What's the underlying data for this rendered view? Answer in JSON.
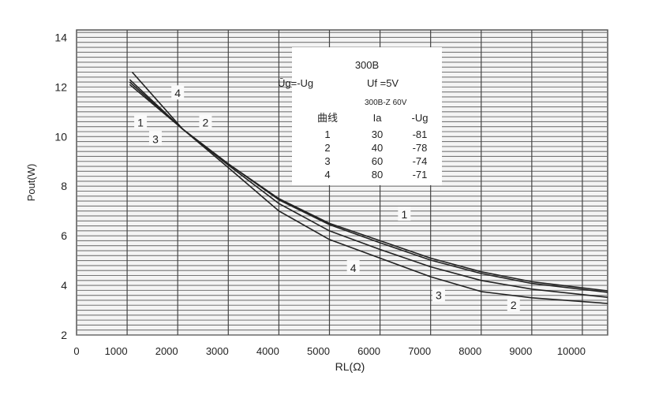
{
  "chart_data": {
    "type": "line",
    "title": "",
    "xlabel": "RL(Ω)",
    "ylabel": "Pout(W)",
    "xlim": [
      0,
      10500
    ],
    "ylim": [
      2,
      14.3
    ],
    "grid": true,
    "xticks": [
      0,
      1000,
      2000,
      3000,
      4000,
      5000,
      6000,
      7000,
      8000,
      9000,
      10000
    ],
    "yticks": [
      2,
      4,
      6,
      8,
      10,
      12,
      14
    ],
    "series": [
      {
        "name": "1",
        "points": [
          [
            1050,
            12.3
          ],
          [
            2100,
            10.3
          ],
          [
            3000,
            8.9
          ],
          [
            4000,
            7.5
          ],
          [
            5000,
            6.5
          ],
          [
            6000,
            5.8
          ],
          [
            7000,
            5.1
          ],
          [
            8000,
            4.55
          ],
          [
            9000,
            4.15
          ],
          [
            10500,
            3.78
          ]
        ]
      },
      {
        "name": "2",
        "points": [
          [
            1050,
            12.2
          ],
          [
            2100,
            10.3
          ],
          [
            3000,
            8.9
          ],
          [
            4000,
            7.45
          ],
          [
            5000,
            6.45
          ],
          [
            6000,
            5.72
          ],
          [
            7000,
            5.02
          ],
          [
            8000,
            4.48
          ],
          [
            9000,
            4.08
          ],
          [
            10500,
            3.72
          ]
        ]
      },
      {
        "name": "3",
        "points": [
          [
            1050,
            12.1
          ],
          [
            2100,
            10.3
          ],
          [
            3000,
            8.85
          ],
          [
            4000,
            7.3
          ],
          [
            5000,
            6.2
          ],
          [
            6000,
            5.45
          ],
          [
            7000,
            4.75
          ],
          [
            8000,
            4.2
          ],
          [
            9000,
            3.85
          ],
          [
            10500,
            3.52
          ]
        ]
      },
      {
        "name": "4",
        "points": [
          [
            1100,
            12.6
          ],
          [
            2100,
            10.3
          ],
          [
            3000,
            8.75
          ],
          [
            4000,
            7.0
          ],
          [
            5000,
            5.85
          ],
          [
            6000,
            5.1
          ],
          [
            7000,
            4.35
          ],
          [
            8000,
            3.75
          ],
          [
            9000,
            3.5
          ],
          [
            10500,
            3.27
          ]
        ]
      }
    ],
    "curve_labels": [
      {
        "text": "4",
        "x": 2000,
        "y": 11.75
      },
      {
        "text": "1",
        "x": 1265,
        "y": 10.57
      },
      {
        "text": "2",
        "x": 2550,
        "y": 10.57
      },
      {
        "text": "3",
        "x": 1560,
        "y": 9.9
      },
      {
        "text": "1",
        "x": 6480,
        "y": 6.86
      },
      {
        "text": "4",
        "x": 5470,
        "y": 4.7
      },
      {
        "text": "3",
        "x": 7160,
        "y": 3.6
      },
      {
        "text": "2",
        "x": 8640,
        "y": 3.2
      }
    ],
    "legend": {
      "placement": "top-center",
      "title": "300B",
      "note_left": "Ūg=-Ug",
      "note_right": "Uf =5V",
      "note_sub": "300B-Z 60V",
      "columns": [
        "曲线",
        "Ia",
        "-Ug"
      ],
      "rows": [
        [
          "1",
          "30",
          "-81"
        ],
        [
          "2",
          "40",
          "-78"
        ],
        [
          "3",
          "60",
          "-74"
        ],
        [
          "4",
          "80",
          "-71"
        ]
      ]
    }
  }
}
